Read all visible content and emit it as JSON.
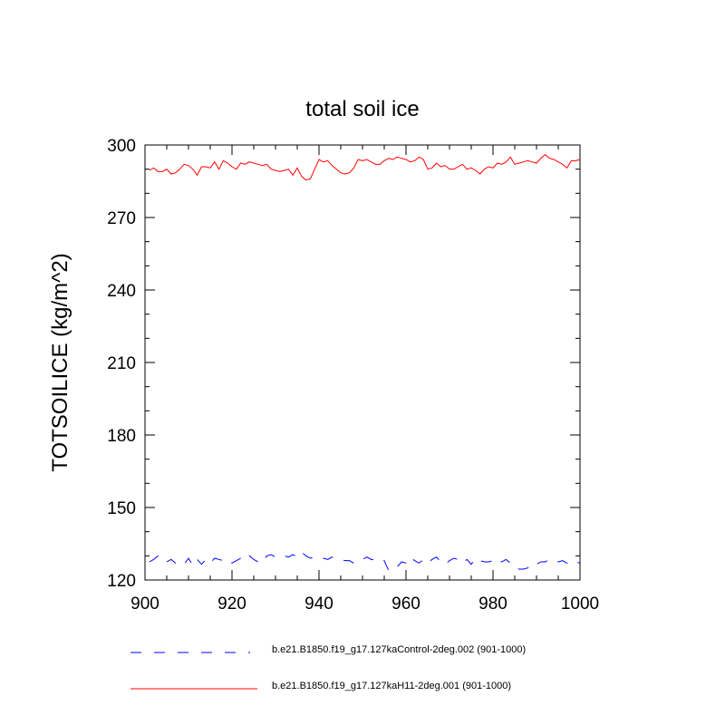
{
  "chart_data": {
    "type": "line",
    "title": "total soil ice",
    "ylabel": "TOTSOILICE  (kg/m^2)",
    "xlabel": "",
    "xlim": [
      900,
      1000
    ],
    "ylim": [
      120,
      300
    ],
    "xticks": [
      900,
      920,
      940,
      960,
      980,
      1000
    ],
    "yticks": [
      120,
      150,
      180,
      210,
      240,
      270,
      300
    ],
    "x_minor_step": 5,
    "y_minor_step": 10,
    "grid": false,
    "legend_position": "bottom",
    "series": [
      {
        "name": "b.e21.B1850.f19_g17.127kaControl-2deg.002 (901-1000)",
        "color": "#0000ff",
        "style": "dashed",
        "x_start": 901,
        "x_step": 1,
        "values": [
          127.5,
          128.5,
          130,
          128,
          127.5,
          128.5,
          127,
          127.5,
          126.5,
          129,
          126,
          128.5,
          126.5,
          128.5,
          127,
          129,
          128.5,
          128,
          128.5,
          127,
          128,
          129,
          131,
          130,
          128.5,
          127.5,
          127,
          130,
          130.5,
          129.5,
          130,
          130,
          129.5,
          130.5,
          129.5,
          131.5,
          130,
          129,
          129.5,
          129,
          129,
          128.5,
          129.5,
          129,
          128.5,
          128,
          128,
          127,
          127.5,
          128.5,
          129.5,
          128.5,
          128.5,
          127.5,
          128,
          124,
          124,
          125.5,
          127.5,
          127,
          129.5,
          128,
          127,
          128.5,
          127,
          128.5,
          129.5,
          127.5,
          126.5,
          128,
          129,
          128.5,
          127,
          128.5,
          126.5,
          129,
          128,
          127.5,
          127.5,
          128,
          129,
          127.5,
          128.5,
          127,
          125,
          124.5,
          124.5,
          125,
          127,
          126.5,
          127.5,
          127.5,
          128.5,
          128,
          127.5,
          128,
          127,
          126.5,
          127.5,
          127
        ]
      },
      {
        "name": "b.e21.B1850.f19_g17.127kaH11-2deg.001 (901-1000)",
        "color": "#ff0000",
        "style": "solid",
        "x_start": 901,
        "x_step": 1,
        "values": [
          289.5,
          290.5,
          289,
          289,
          290,
          288,
          288.5,
          290,
          292,
          291.5,
          290,
          287.5,
          291,
          291,
          290.5,
          293,
          290,
          293.5,
          292.5,
          291,
          290,
          292.5,
          292,
          293,
          292.5,
          292,
          291.5,
          292,
          290,
          289.5,
          289,
          289.5,
          290,
          287.5,
          290.5,
          287,
          285.5,
          286,
          290,
          294,
          293,
          293.5,
          291.5,
          290,
          288.5,
          288,
          288.5,
          290.5,
          294,
          293.5,
          294,
          293,
          292,
          292,
          293.5,
          294.5,
          294,
          295,
          294.5,
          294,
          293,
          293.5,
          295,
          294,
          290,
          290.5,
          292.5,
          291,
          291.5,
          290,
          290,
          291,
          292,
          290,
          290.5,
          289.5,
          288,
          290,
          291,
          290.5,
          292.5,
          292,
          293,
          295,
          292,
          292.5,
          293,
          293.5,
          293,
          292.5,
          294.5,
          296,
          294.5,
          294,
          293,
          292,
          290.5,
          293.5,
          293.5,
          294
        ]
      }
    ]
  }
}
